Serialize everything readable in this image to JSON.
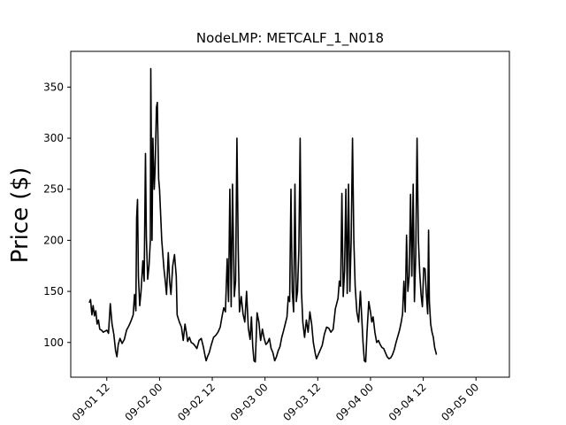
{
  "chart_data": {
    "type": "line",
    "title": "NodeLMP: METCALF_1_N018",
    "xlabel": "",
    "ylabel": "Price ($)",
    "x_unit": "hours from 2020-09-01 00:00 (5-minute samples, shown as hourly series)",
    "x_ticks": [
      {
        "x": 12,
        "label": "09-01 12"
      },
      {
        "x": 24,
        "label": "09-02 00"
      },
      {
        "x": 36,
        "label": "09-02 12"
      },
      {
        "x": 48,
        "label": "09-03 00"
      },
      {
        "x": 60,
        "label": "09-03 12"
      },
      {
        "x": 72,
        "label": "09-04 00"
      },
      {
        "x": 84,
        "label": "09-04 12"
      },
      {
        "x": 96,
        "label": "09-05 00"
      }
    ],
    "y_ticks": [
      100,
      150,
      200,
      250,
      300,
      350
    ],
    "xlim": [
      3.8,
      103.6
    ],
    "ylim": [
      66,
      385
    ],
    "grid": false,
    "series": [
      {
        "color": "#000000",
        "points": [
          [
            8.0,
            139
          ],
          [
            8.3,
            142
          ],
          [
            8.6,
            127
          ],
          [
            8.9,
            136
          ],
          [
            9.2,
            126
          ],
          [
            9.5,
            131
          ],
          [
            9.8,
            118
          ],
          [
            10.1,
            122
          ],
          [
            10.4,
            113
          ],
          [
            10.8,
            112
          ],
          [
            11.2,
            110
          ],
          [
            11.6,
            111
          ],
          [
            12.0,
            112
          ],
          [
            12.4,
            109
          ],
          [
            12.8,
            138
          ],
          [
            13.2,
            118
          ],
          [
            13.6,
            108
          ],
          [
            14.0,
            92
          ],
          [
            14.3,
            86
          ],
          [
            14.6,
            98
          ],
          [
            15.0,
            104
          ],
          [
            15.5,
            99
          ],
          [
            16.0,
            103
          ],
          [
            16.5,
            112
          ],
          [
            17.0,
            116
          ],
          [
            17.5,
            121
          ],
          [
            18.0,
            127
          ],
          [
            18.3,
            147
          ],
          [
            18.6,
            131
          ],
          [
            18.8,
            222
          ],
          [
            19.0,
            240
          ],
          [
            19.2,
            165
          ],
          [
            19.5,
            136
          ],
          [
            19.8,
            150
          ],
          [
            20.2,
            180
          ],
          [
            20.5,
            160
          ],
          [
            20.8,
            285
          ],
          [
            21.0,
            203
          ],
          [
            21.3,
            162
          ],
          [
            21.6,
            175
          ],
          [
            21.9,
            200
          ],
          [
            22.0,
            368
          ],
          [
            22.3,
            200
          ],
          [
            22.5,
            300
          ],
          [
            22.8,
            250
          ],
          [
            23.0,
            270
          ],
          [
            23.3,
            330
          ],
          [
            23.5,
            335
          ],
          [
            23.8,
            260
          ],
          [
            24.0,
            250
          ],
          [
            24.5,
            200
          ],
          [
            25.0,
            172
          ],
          [
            25.3,
            160
          ],
          [
            25.6,
            147
          ],
          [
            26.0,
            188
          ],
          [
            26.3,
            160
          ],
          [
            26.6,
            147
          ],
          [
            27.0,
            175
          ],
          [
            27.4,
            186
          ],
          [
            27.8,
            165
          ],
          [
            28.0,
            127
          ],
          [
            28.5,
            120
          ],
          [
            29.0,
            115
          ],
          [
            29.4,
            102
          ],
          [
            29.8,
            118
          ],
          [
            30.1,
            110
          ],
          [
            30.4,
            101
          ],
          [
            30.8,
            105
          ],
          [
            31.2,
            100
          ],
          [
            31.6,
            99
          ],
          [
            32.0,
            97
          ],
          [
            32.5,
            94
          ],
          [
            33.0,
            102
          ],
          [
            33.5,
            104
          ],
          [
            34.0,
            95
          ],
          [
            34.3,
            88
          ],
          [
            34.6,
            82
          ],
          [
            34.9,
            86
          ],
          [
            35.3,
            90
          ],
          [
            35.8,
            98
          ],
          [
            36.3,
            105
          ],
          [
            36.8,
            107
          ],
          [
            37.3,
            110
          ],
          [
            37.8,
            115
          ],
          [
            38.2,
            125
          ],
          [
            38.6,
            134
          ],
          [
            39.0,
            130
          ],
          [
            39.4,
            182
          ],
          [
            39.7,
            140
          ],
          [
            40.0,
            250
          ],
          [
            40.3,
            135
          ],
          [
            40.6,
            255
          ],
          [
            41.0,
            145
          ],
          [
            41.3,
            160
          ],
          [
            41.6,
            300
          ],
          [
            41.9,
            190
          ],
          [
            42.2,
            130
          ],
          [
            42.6,
            145
          ],
          [
            43.0,
            128
          ],
          [
            43.4,
            120
          ],
          [
            43.8,
            150
          ],
          [
            44.2,
            114
          ],
          [
            44.6,
            103
          ],
          [
            44.9,
            125
          ],
          [
            45.2,
            96
          ],
          [
            45.5,
            82
          ],
          [
            45.8,
            81
          ],
          [
            46.2,
            129
          ],
          [
            46.6,
            120
          ],
          [
            47.0,
            102
          ],
          [
            47.4,
            113
          ],
          [
            47.8,
            104
          ],
          [
            48.2,
            98
          ],
          [
            48.6,
            100
          ],
          [
            49.0,
            104
          ],
          [
            49.4,
            94
          ],
          [
            49.8,
            90
          ],
          [
            50.2,
            82
          ],
          [
            50.6,
            86
          ],
          [
            51.0,
            92
          ],
          [
            51.4,
            96
          ],
          [
            51.8,
            105
          ],
          [
            52.2,
            111
          ],
          [
            52.6,
            118
          ],
          [
            53.0,
            125
          ],
          [
            53.3,
            145
          ],
          [
            53.6,
            140
          ],
          [
            53.9,
            250
          ],
          [
            54.2,
            150
          ],
          [
            54.5,
            130
          ],
          [
            54.8,
            255
          ],
          [
            55.1,
            140
          ],
          [
            55.4,
            150
          ],
          [
            55.7,
            190
          ],
          [
            56.0,
            300
          ],
          [
            56.3,
            150
          ],
          [
            56.6,
            120
          ],
          [
            57.0,
            105
          ],
          [
            57.4,
            122
          ],
          [
            57.8,
            110
          ],
          [
            58.2,
            130
          ],
          [
            58.6,
            118
          ],
          [
            59.0,
            100
          ],
          [
            59.4,
            90
          ],
          [
            59.7,
            84
          ],
          [
            60.0,
            87
          ],
          [
            60.5,
            92
          ],
          [
            61.0,
            97
          ],
          [
            61.5,
            108
          ],
          [
            62.0,
            115
          ],
          [
            62.5,
            114
          ],
          [
            63.0,
            110
          ],
          [
            63.5,
            113
          ],
          [
            64.0,
            133
          ],
          [
            64.3,
            138
          ],
          [
            64.6,
            143
          ],
          [
            64.9,
            160
          ],
          [
            65.2,
            155
          ],
          [
            65.5,
            246
          ],
          [
            65.8,
            145
          ],
          [
            66.1,
            170
          ],
          [
            66.4,
            250
          ],
          [
            66.7,
            148
          ],
          [
            67.0,
            255
          ],
          [
            67.3,
            150
          ],
          [
            67.6,
            200
          ],
          [
            67.9,
            300
          ],
          [
            68.2,
            200
          ],
          [
            68.5,
            155
          ],
          [
            68.9,
            130
          ],
          [
            69.3,
            120
          ],
          [
            69.7,
            150
          ],
          [
            70.0,
            125
          ],
          [
            70.3,
            100
          ],
          [
            70.6,
            82
          ],
          [
            70.9,
            81
          ],
          [
            71.2,
            110
          ],
          [
            71.6,
            140
          ],
          [
            72.0,
            130
          ],
          [
            72.3,
            120
          ],
          [
            72.6,
            125
          ],
          [
            73.0,
            110
          ],
          [
            73.4,
            100
          ],
          [
            73.8,
            102
          ],
          [
            74.2,
            98
          ],
          [
            74.6,
            95
          ],
          [
            75.0,
            94
          ],
          [
            75.4,
            90
          ],
          [
            75.8,
            86
          ],
          [
            76.2,
            84
          ],
          [
            76.6,
            85
          ],
          [
            77.0,
            88
          ],
          [
            77.4,
            93
          ],
          [
            77.8,
            100
          ],
          [
            78.2,
            106
          ],
          [
            78.6,
            112
          ],
          [
            79.0,
            120
          ],
          [
            79.3,
            128
          ],
          [
            79.6,
            160
          ],
          [
            79.9,
            130
          ],
          [
            80.2,
            205
          ],
          [
            80.5,
            150
          ],
          [
            80.8,
            165
          ],
          [
            81.1,
            245
          ],
          [
            81.4,
            165
          ],
          [
            81.7,
            255
          ],
          [
            82.0,
            140
          ],
          [
            82.3,
            186
          ],
          [
            82.6,
            300
          ],
          [
            82.9,
            200
          ],
          [
            83.2,
            168
          ],
          [
            83.5,
            147
          ],
          [
            83.8,
            135
          ],
          [
            84.1,
            173
          ],
          [
            84.4,
            172
          ],
          [
            84.7,
            147
          ],
          [
            85.0,
            128
          ],
          [
            85.2,
            210
          ],
          [
            85.4,
            140
          ],
          [
            85.7,
            118
          ],
          [
            86.0,
            110
          ],
          [
            86.3,
            105
          ],
          [
            86.6,
            95
          ],
          [
            86.9,
            90
          ],
          [
            87.0,
            88
          ]
        ]
      }
    ]
  }
}
